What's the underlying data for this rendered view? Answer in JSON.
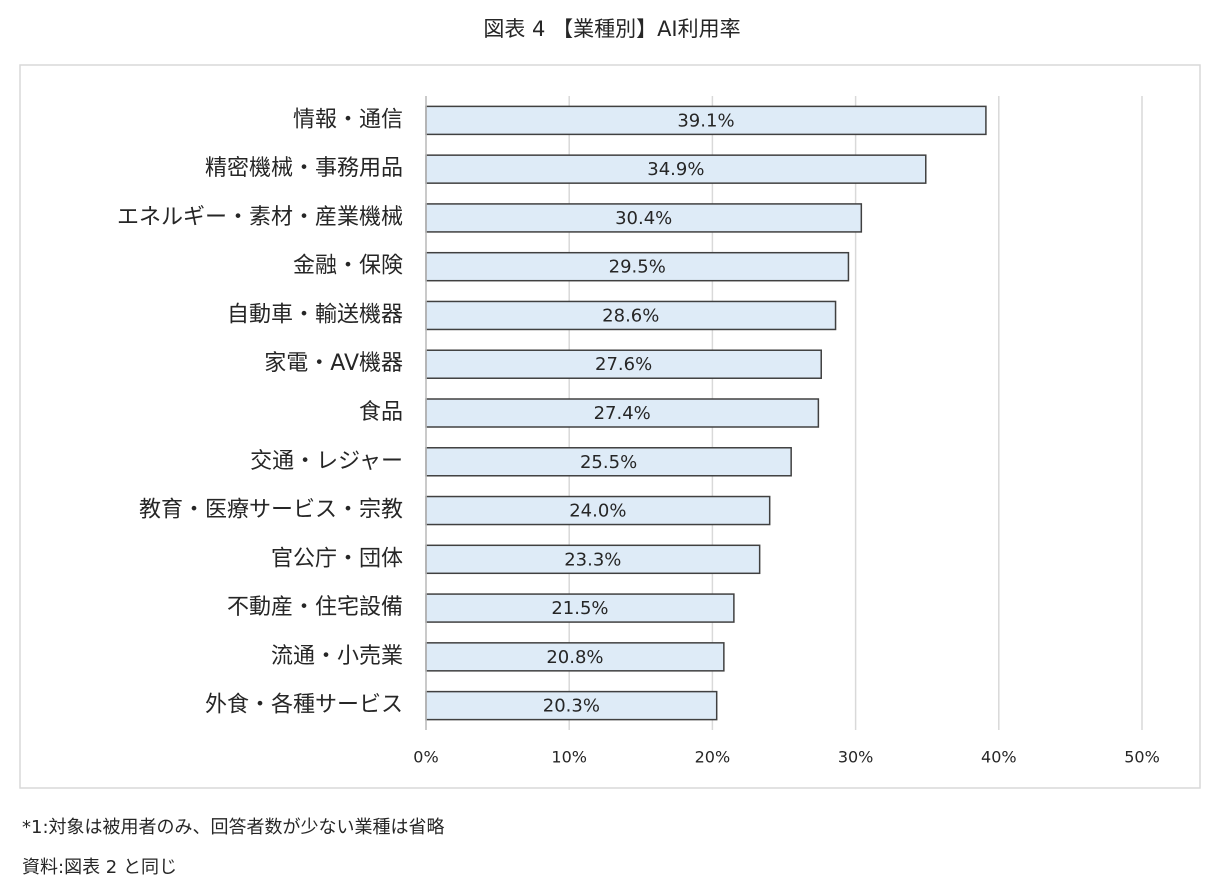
{
  "chart_data": {
    "type": "barh",
    "title": "図表 4 【業種別】AI利用率",
    "categories": [
      "情報・通信",
      "精密機械・事務用品",
      "エネルギー・素材・産業機械",
      "金融・保険",
      "自動車・輸送機器",
      "家電・AV機器",
      "食品",
      "交通・レジャー",
      "教育・医療サービス・宗教",
      "官公庁・団体",
      "不動産・住宅設備",
      "流通・小売業",
      "外食・各種サービス"
    ],
    "values": [
      39.1,
      34.9,
      30.4,
      29.5,
      28.6,
      27.6,
      27.4,
      25.5,
      24.0,
      23.3,
      21.5,
      20.8,
      20.3
    ],
    "value_labels": [
      "39.1%",
      "34.9%",
      "30.4%",
      "29.5%",
      "28.6%",
      "27.6%",
      "27.4%",
      "25.5%",
      "24.0%",
      "23.3%",
      "21.5%",
      "20.8%",
      "20.3%"
    ],
    "color": "#deebf7",
    "xlim": [
      0,
      50
    ],
    "xticks": [
      {
        "value": 0,
        "label": "0%"
      },
      {
        "value": 10,
        "label": "10%"
      },
      {
        "value": 20,
        "label": "20%"
      },
      {
        "value": 30,
        "label": "30%"
      },
      {
        "value": 40,
        "label": "40%"
      },
      {
        "value": 50,
        "label": "50%"
      }
    ],
    "grid": true,
    "footnotes": [
      "*1:対象は被用者のみ、回答者数が少ない業種は省略",
      "資料:図表 2 と同じ"
    ]
  }
}
